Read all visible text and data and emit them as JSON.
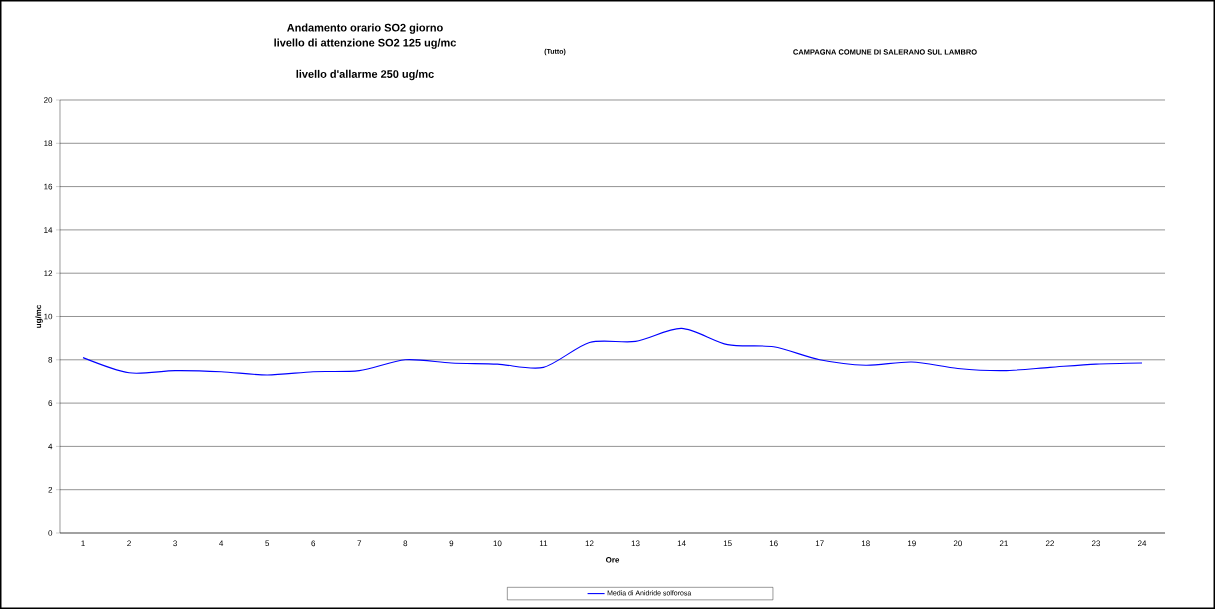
{
  "chart_data": {
    "type": "line",
    "title": "Andamento orario SO2 giorno",
    "subtitle": "livello di attenzione SO2  125 ug/mc",
    "annotations": [
      "(Tutto)",
      "CAMPAGNA COMUNE DI SALERANO SUL LAMBRO",
      "livello d'allarme 250 ug/mc"
    ],
    "xlabel": "Ore",
    "ylabel": "ug/mc",
    "categories": [
      "1",
      "2",
      "3",
      "4",
      "5",
      "6",
      "7",
      "8",
      "9",
      "10",
      "11",
      "12",
      "13",
      "14",
      "15",
      "16",
      "17",
      "18",
      "19",
      "20",
      "21",
      "22",
      "23",
      "24"
    ],
    "series": [
      {
        "name": "Media di Anidride solforosa",
        "color": "#0000ff",
        "values": [
          8.1,
          7.4,
          7.5,
          7.45,
          7.3,
          7.45,
          7.5,
          8.0,
          7.85,
          7.8,
          7.65,
          8.8,
          8.85,
          9.45,
          8.7,
          8.6,
          8.0,
          7.75,
          7.9,
          7.6,
          7.5,
          7.65,
          7.8,
          7.85
        ]
      }
    ],
    "ylim": [
      0,
      20
    ],
    "yticks": [
      0,
      2,
      4,
      6,
      8,
      10,
      12,
      14,
      16,
      18,
      20
    ],
    "grid": "y",
    "legend": "bottom",
    "marker": "none",
    "line_style": "solid"
  }
}
